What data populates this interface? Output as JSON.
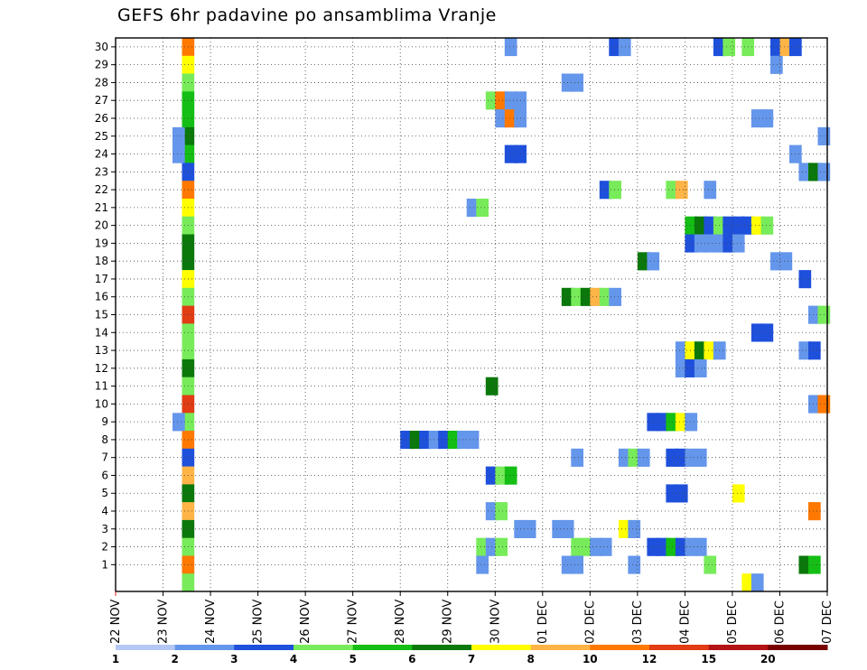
{
  "chart_data": {
    "type": "heatmap",
    "title": "GEFS 6hr padavine po ansamblima Vranje",
    "x_tick_labels": [
      "22 NOV",
      "23 NOV",
      "24 NOV",
      "25 NOV",
      "26 NOV",
      "27 NOV",
      "28 NOV",
      "29 NOV",
      "30 NOV",
      "01 DEC",
      "02 DEC",
      "03 DEC",
      "04 DEC",
      "05 DEC",
      "06 DEC",
      "07 DEC"
    ],
    "y_tick_labels": [
      "1",
      "2",
      "3",
      "4",
      "5",
      "6",
      "7",
      "8",
      "9",
      "10",
      "11",
      "12",
      "13",
      "14",
      "15",
      "16",
      "17",
      "18",
      "19",
      "20",
      "21",
      "22",
      "23",
      "24",
      "25",
      "26",
      "27",
      "28",
      "29",
      "30"
    ],
    "steps_per_day": 4,
    "member_rows": 31,
    "grid": true,
    "colorbar": {
      "labels": [
        "1",
        "2",
        "3",
        "4",
        "5",
        "6",
        "7",
        "8",
        "10",
        "12",
        "15",
        "20"
      ],
      "colors": [
        "#b4c8f5",
        "#6496eb",
        "#1e50dc",
        "#78eb5a",
        "#14be14",
        "#0a780a",
        "#ffff00",
        "#ffb446",
        "#ff7800",
        "#e13c14",
        "#b41414",
        "#780000"
      ]
    },
    "cells": [
      [
        30,
        1.4,
        8
      ],
      [
        29,
        1.4,
        6
      ],
      [
        28,
        1.4,
        3
      ],
      [
        27,
        1.4,
        4
      ],
      [
        26,
        1.4,
        4
      ],
      [
        25,
        1.4,
        5
      ],
      [
        24,
        1.4,
        4
      ],
      [
        23,
        1.4,
        2
      ],
      [
        22,
        1.4,
        8
      ],
      [
        21,
        1.4,
        6
      ],
      [
        20,
        1.4,
        3
      ],
      [
        19,
        1.4,
        5
      ],
      [
        18,
        1.4,
        5
      ],
      [
        17,
        1.4,
        6
      ],
      [
        16,
        1.4,
        3
      ],
      [
        15,
        1.4,
        9
      ],
      [
        14,
        1.4,
        3
      ],
      [
        13,
        1.4,
        3
      ],
      [
        12,
        1.4,
        5
      ],
      [
        11,
        1.4,
        3
      ],
      [
        10,
        1.4,
        9
      ],
      [
        9,
        1.4,
        3
      ],
      [
        8,
        1.4,
        8
      ],
      [
        7,
        1.4,
        2
      ],
      [
        6,
        1.4,
        7
      ],
      [
        5,
        1.4,
        5
      ],
      [
        4,
        1.4,
        7
      ],
      [
        3,
        1.4,
        5
      ],
      [
        2,
        1.4,
        3
      ],
      [
        1,
        1.4,
        8
      ],
      [
        0,
        1.4,
        3
      ],
      [
        25,
        1.2,
        1
      ],
      [
        24,
        1.2,
        1
      ],
      [
        9,
        1.2,
        1
      ],
      [
        30,
        8.2,
        1
      ],
      [
        30,
        10.4,
        2
      ],
      [
        30,
        10.6,
        1
      ],
      [
        30,
        12.6,
        2
      ],
      [
        30,
        12.8,
        3
      ],
      [
        30,
        13.2,
        3
      ],
      [
        30,
        13.8,
        2
      ],
      [
        30,
        14.0,
        7
      ],
      [
        30,
        14.2,
        2
      ],
      [
        29,
        13.8,
        1
      ],
      [
        28,
        9.4,
        1
      ],
      [
        28,
        9.6,
        1
      ],
      [
        27,
        7.8,
        3
      ],
      [
        27,
        8.0,
        8
      ],
      [
        27,
        8.2,
        1
      ],
      [
        27,
        8.4,
        1
      ],
      [
        26,
        8.0,
        1
      ],
      [
        26,
        8.2,
        8
      ],
      [
        26,
        8.4,
        1
      ],
      [
        26,
        13.4,
        1
      ],
      [
        26,
        13.6,
        1
      ],
      [
        25,
        14.8,
        1
      ],
      [
        24,
        8.2,
        2
      ],
      [
        24,
        8.4,
        2
      ],
      [
        24,
        14.2,
        1
      ],
      [
        23,
        14.4,
        1
      ],
      [
        23,
        14.6,
        5
      ],
      [
        23,
        14.8,
        1
      ],
      [
        22,
        10.2,
        2
      ],
      [
        22,
        10.4,
        3
      ],
      [
        22,
        11.6,
        3
      ],
      [
        22,
        11.8,
        7
      ],
      [
        22,
        12.4,
        1
      ],
      [
        21,
        7.4,
        1
      ],
      [
        21,
        7.6,
        3
      ],
      [
        20,
        12.0,
        4
      ],
      [
        20,
        12.2,
        5
      ],
      [
        20,
        12.4,
        2
      ],
      [
        20,
        12.6,
        3
      ],
      [
        20,
        12.8,
        2
      ],
      [
        20,
        13.0,
        2
      ],
      [
        20,
        13.2,
        2
      ],
      [
        20,
        13.4,
        6
      ],
      [
        20,
        13.6,
        3
      ],
      [
        19,
        12.0,
        2
      ],
      [
        19,
        12.2,
        1
      ],
      [
        19,
        12.4,
        1
      ],
      [
        19,
        12.6,
        1
      ],
      [
        19,
        12.8,
        2
      ],
      [
        19,
        13.0,
        1
      ],
      [
        18,
        11.0,
        5
      ],
      [
        18,
        11.2,
        1
      ],
      [
        18,
        13.8,
        1
      ],
      [
        18,
        14.0,
        1
      ],
      [
        17,
        14.4,
        2
      ],
      [
        16,
        9.4,
        5
      ],
      [
        16,
        9.6,
        3
      ],
      [
        16,
        9.8,
        5
      ],
      [
        16,
        10.0,
        7
      ],
      [
        16,
        10.2,
        3
      ],
      [
        16,
        10.4,
        1
      ],
      [
        15,
        14.6,
        1
      ],
      [
        15,
        14.8,
        3
      ],
      [
        14,
        13.4,
        2
      ],
      [
        14,
        13.6,
        2
      ],
      [
        13,
        11.8,
        1
      ],
      [
        13,
        12.0,
        6
      ],
      [
        13,
        12.2,
        5
      ],
      [
        13,
        12.4,
        6
      ],
      [
        13,
        12.6,
        1
      ],
      [
        13,
        14.4,
        1
      ],
      [
        13,
        14.6,
        2
      ],
      [
        12,
        11.8,
        1
      ],
      [
        12,
        12.0,
        2
      ],
      [
        12,
        12.2,
        1
      ],
      [
        11,
        7.8,
        5
      ],
      [
        10,
        14.6,
        1
      ],
      [
        10,
        14.8,
        8
      ],
      [
        9,
        11.2,
        2
      ],
      [
        9,
        11.4,
        2
      ],
      [
        9,
        11.6,
        4
      ],
      [
        9,
        11.8,
        6
      ],
      [
        9,
        12.0,
        1
      ],
      [
        8,
        6.0,
        2
      ],
      [
        8,
        6.2,
        5
      ],
      [
        8,
        6.4,
        2
      ],
      [
        8,
        6.6,
        1
      ],
      [
        8,
        6.8,
        2
      ],
      [
        8,
        7.0,
        4
      ],
      [
        8,
        7.2,
        1
      ],
      [
        8,
        7.4,
        1
      ],
      [
        7,
        9.6,
        1
      ],
      [
        7,
        10.6,
        1
      ],
      [
        7,
        10.8,
        3
      ],
      [
        7,
        11.0,
        1
      ],
      [
        7,
        11.6,
        2
      ],
      [
        7,
        11.8,
        2
      ],
      [
        7,
        12.0,
        1
      ],
      [
        7,
        12.2,
        1
      ],
      [
        6,
        7.8,
        2
      ],
      [
        6,
        8.0,
        3
      ],
      [
        6,
        8.2,
        4
      ],
      [
        5,
        11.6,
        2
      ],
      [
        5,
        11.8,
        2
      ],
      [
        5,
        13.0,
        6
      ],
      [
        4,
        7.8,
        1
      ],
      [
        4,
        8.0,
        3
      ],
      [
        4,
        14.6,
        8
      ],
      [
        3,
        8.4,
        1
      ],
      [
        3,
        8.6,
        1
      ],
      [
        3,
        9.2,
        1
      ],
      [
        3,
        9.4,
        1
      ],
      [
        3,
        10.6,
        6
      ],
      [
        3,
        10.8,
        1
      ],
      [
        2,
        7.6,
        3
      ],
      [
        2,
        7.8,
        1
      ],
      [
        2,
        8.0,
        3
      ],
      [
        2,
        9.6,
        3
      ],
      [
        2,
        9.8,
        3
      ],
      [
        2,
        10.0,
        1
      ],
      [
        2,
        10.2,
        1
      ],
      [
        2,
        11.2,
        2
      ],
      [
        2,
        11.4,
        2
      ],
      [
        2,
        11.6,
        4
      ],
      [
        2,
        11.8,
        2
      ],
      [
        2,
        12.0,
        1
      ],
      [
        2,
        12.2,
        1
      ],
      [
        1,
        7.6,
        1
      ],
      [
        1,
        9.4,
        1
      ],
      [
        1,
        9.6,
        1
      ],
      [
        1,
        10.8,
        1
      ],
      [
        1,
        12.4,
        3
      ],
      [
        1,
        14.4,
        5
      ],
      [
        1,
        14.6,
        4
      ],
      [
        0,
        13.2,
        6
      ],
      [
        0,
        13.4,
        1
      ]
    ]
  }
}
